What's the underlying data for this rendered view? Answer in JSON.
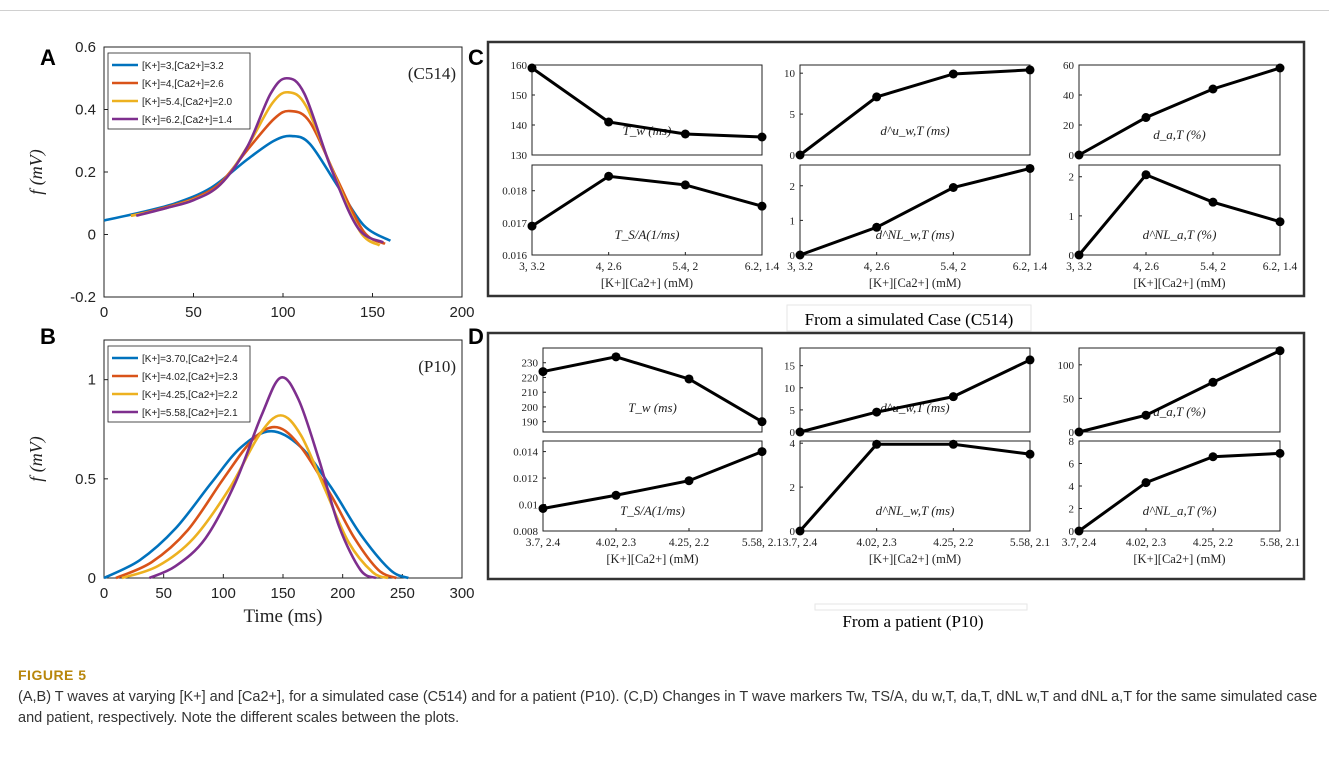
{
  "panel_labels": {
    "A": "A",
    "B": "B",
    "C": "C",
    "D": "D"
  },
  "group_titles": {
    "C": "From a simulated Case (C514)",
    "D": "From a patient (P10)"
  },
  "caption": {
    "label": "FIGURE 5",
    "text": "(A,B) T waves at varying [K+] and [Ca2+], for a simulated case (C514) and for a patient (P10). (C,D) Changes in T wave markers Tw, TS/A, du w,T, da,T, dNL w,T and dNL a,T for the same simulated case and patient, respectively. Note the different scales between the plots."
  },
  "colors": {
    "blue": "#0072bd",
    "orange": "#d95319",
    "yellow": "#edb120",
    "purple": "#7e2f8e",
    "line": "#000000"
  },
  "chart_data": [
    {
      "id": "A",
      "type": "line",
      "annotation": "(C514)",
      "ylabel": "f (mV)",
      "xlabel": "",
      "xlim": [
        0,
        200
      ],
      "ylim": [
        -0.2,
        0.6
      ],
      "xticks": [
        "0",
        "50",
        "100",
        "150",
        "200"
      ],
      "xtick_values": [
        0,
        50,
        100,
        150,
        200
      ],
      "yticks": [
        "-0.2",
        "0",
        "0.2",
        "0.4",
        "0.6"
      ],
      "ytick_values": [
        -0.2,
        0,
        0.2,
        0.4,
        0.6
      ],
      "legend_position": "top-left",
      "series": [
        {
          "name": "[K+]=3,[Ca2+]=3.2",
          "color_key": "blue",
          "x": [
            0,
            20,
            40,
            60,
            80,
            95,
            105,
            115,
            130,
            145,
            160
          ],
          "y": [
            0.045,
            0.07,
            0.1,
            0.15,
            0.24,
            0.3,
            0.315,
            0.29,
            0.16,
            0.03,
            -0.02
          ]
        },
        {
          "name": "[K+]=4,[Ca2+]=2.6",
          "color_key": "orange",
          "x": [
            15,
            30,
            50,
            65,
            80,
            95,
            104,
            115,
            130,
            145,
            157
          ],
          "y": [
            0.06,
            0.08,
            0.115,
            0.165,
            0.27,
            0.37,
            0.395,
            0.36,
            0.18,
            0.01,
            -0.03
          ]
        },
        {
          "name": "[K+]=5.4,[Ca2+]=2.0",
          "color_key": "yellow",
          "x": [
            15,
            30,
            50,
            65,
            80,
            94,
            103,
            113,
            128,
            143,
            154
          ],
          "y": [
            0.06,
            0.078,
            0.112,
            0.16,
            0.28,
            0.42,
            0.455,
            0.41,
            0.2,
            0.01,
            -0.035
          ]
        },
        {
          "name": "[K+]=6.2,[Ca2+]=1.4",
          "color_key": "purple",
          "x": [
            18,
            35,
            50,
            65,
            80,
            93,
            102,
            112,
            127,
            142,
            156
          ],
          "y": [
            0.06,
            0.085,
            0.11,
            0.16,
            0.28,
            0.45,
            0.5,
            0.45,
            0.21,
            0.02,
            -0.025
          ]
        }
      ]
    },
    {
      "id": "B",
      "type": "line",
      "annotation": "(P10)",
      "ylabel": "f (mV)",
      "xlabel": "Time (ms)",
      "xlim": [
        0,
        300
      ],
      "ylim": [
        0,
        1.2
      ],
      "xticks": [
        "0",
        "50",
        "100",
        "150",
        "200",
        "250",
        "300"
      ],
      "xtick_values": [
        0,
        50,
        100,
        150,
        200,
        250,
        300
      ],
      "yticks": [
        "0",
        "0.5",
        "1"
      ],
      "ytick_values": [
        0,
        0.5,
        1
      ],
      "legend_position": "top-left",
      "series": [
        {
          "name": "[K+]=3.70,[Ca2+]=2.4",
          "color_key": "blue",
          "x": [
            0,
            30,
            60,
            90,
            115,
            140,
            165,
            190,
            215,
            240,
            255
          ],
          "y": [
            0,
            0.09,
            0.25,
            0.48,
            0.66,
            0.74,
            0.66,
            0.46,
            0.22,
            0.04,
            0
          ]
        },
        {
          "name": "[K+]=4.02,[Ca2+]=2.3",
          "color_key": "orange",
          "x": [
            10,
            40,
            70,
            100,
            125,
            145,
            165,
            190,
            210,
            230,
            245
          ],
          "y": [
            0,
            0.08,
            0.24,
            0.5,
            0.7,
            0.76,
            0.66,
            0.42,
            0.2,
            0.04,
            0
          ]
        },
        {
          "name": "[K+]=4.25,[Ca2+]=2.2",
          "color_key": "yellow",
          "x": [
            15,
            45,
            75,
            105,
            130,
            148,
            165,
            185,
            205,
            225,
            238
          ],
          "y": [
            0,
            0.06,
            0.2,
            0.45,
            0.72,
            0.82,
            0.72,
            0.45,
            0.18,
            0.03,
            0
          ]
        },
        {
          "name": "[K+]=5.58,[Ca2+]=2.1",
          "color_key": "purple",
          "x": [
            38,
            60,
            85,
            110,
            132,
            148,
            163,
            180,
            197,
            215,
            228
          ],
          "y": [
            0,
            0.06,
            0.2,
            0.48,
            0.82,
            1.01,
            0.9,
            0.6,
            0.26,
            0.04,
            0
          ]
        }
      ]
    },
    {
      "id": "C-Tw",
      "type": "line",
      "annotation": "T_w (ms)",
      "categories": [
        "3, 3.2",
        "4, 2.6",
        "5.4, 2",
        "6.2, 1.4"
      ],
      "values": [
        159,
        141,
        137,
        136
      ],
      "ylim": [
        130,
        160
      ],
      "yticks": [
        "130",
        "140",
        "150",
        "160"
      ],
      "ytick_values": [
        130,
        140,
        150,
        160
      ]
    },
    {
      "id": "C-Tsa",
      "type": "line",
      "annotation": "T_S/A(1/ms)",
      "categories": [
        "3, 3.2",
        "4, 2.6",
        "5.4, 2",
        "6.2, 1.4"
      ],
      "values": [
        0.0169,
        0.01845,
        0.01818,
        0.01752
      ],
      "ylim": [
        0.016,
        0.0188
      ],
      "yticks": [
        "0.016",
        "0.017",
        "0.018"
      ],
      "ytick_values": [
        0.016,
        0.017,
        0.018
      ],
      "xlabel": "[K+][Ca2+] (mM)"
    },
    {
      "id": "C-dwu",
      "type": "line",
      "annotation": "d^u_w,T (ms)",
      "categories": [
        "3, 3.2",
        "4, 2.6",
        "5.4, 2",
        "6.2, 1.4"
      ],
      "values": [
        0,
        7.1,
        9.9,
        10.4
      ],
      "ylim": [
        0,
        11
      ],
      "yticks": [
        "0",
        "5",
        "10"
      ],
      "ytick_values": [
        0,
        5,
        10
      ]
    },
    {
      "id": "C-dwnl",
      "type": "line",
      "annotation": "d^NL_w,T (ms)",
      "categories": [
        "3, 3.2",
        "4, 2.6",
        "5.4, 2",
        "6.2, 1.4"
      ],
      "values": [
        0,
        0.8,
        1.95,
        2.5
      ],
      "ylim": [
        0,
        2.6
      ],
      "yticks": [
        "0",
        "1",
        "2"
      ],
      "ytick_values": [
        0,
        1,
        2
      ],
      "xlabel": "[K+][Ca2+] (mM)"
    },
    {
      "id": "C-da",
      "type": "line",
      "annotation": "d_a,T (%)",
      "categories": [
        "3, 3.2",
        "4, 2.6",
        "5.4, 2",
        "6.2, 1.4"
      ],
      "values": [
        0,
        25,
        44,
        58
      ],
      "ylim": [
        0,
        60
      ],
      "yticks": [
        "0",
        "20",
        "40",
        "60"
      ],
      "ytick_values": [
        0,
        20,
        40,
        60
      ]
    },
    {
      "id": "C-danl",
      "type": "line",
      "annotation": "d^NL_a,T (%)",
      "categories": [
        "3, 3.2",
        "4, 2.6",
        "5.4, 2",
        "6.2, 1.4"
      ],
      "values": [
        0,
        2.05,
        1.35,
        0.85
      ],
      "ylim": [
        0,
        2.3
      ],
      "yticks": [
        "0",
        "1",
        "2"
      ],
      "ytick_values": [
        0,
        1,
        2
      ],
      "xlabel": "[K+][Ca2+] (mM)"
    },
    {
      "id": "D-Tw",
      "type": "line",
      "annotation": "T_w (ms)",
      "categories": [
        "3.7, 2.4",
        "4.02, 2.3",
        "4.25, 2.2",
        "5.58, 2.1"
      ],
      "values": [
        224,
        234,
        219,
        190
      ],
      "ylim": [
        183,
        240
      ],
      "yticks": [
        "190",
        "200",
        "210",
        "220",
        "230"
      ],
      "ytick_values": [
        190,
        200,
        210,
        220,
        230
      ]
    },
    {
      "id": "D-Tsa",
      "type": "line",
      "annotation": "T_S/A(1/ms)",
      "categories": [
        "3.7, 2.4",
        "4.02, 2.3",
        "4.25, 2.2",
        "5.58, 2.1"
      ],
      "values": [
        0.0097,
        0.0107,
        0.0118,
        0.014
      ],
      "ylim": [
        0.008,
        0.0148
      ],
      "yticks": [
        "0.008",
        "0.01",
        "0.012",
        "0.014"
      ],
      "ytick_values": [
        0.008,
        0.01,
        0.012,
        0.014
      ],
      "xlabel": "[K+][Ca2+] (mM)"
    },
    {
      "id": "D-dwu",
      "type": "line",
      "annotation": "d^u_w,T (ms)",
      "categories": [
        "3.7, 2.4",
        "4.02, 2.3",
        "4.25, 2.2",
        "5.58, 2.1"
      ],
      "values": [
        0,
        4.5,
        8,
        16.3
      ],
      "ylim": [
        0,
        19
      ],
      "yticks": [
        "0",
        "5",
        "10",
        "15"
      ],
      "ytick_values": [
        0,
        5,
        10,
        15
      ]
    },
    {
      "id": "D-dwnl",
      "type": "line",
      "annotation": "d^NL_w,T (ms)",
      "categories": [
        "3.7, 2.4",
        "4.02, 2.3",
        "4.25, 2.2",
        "5.58, 2.1"
      ],
      "values": [
        0,
        3.95,
        3.95,
        3.5
      ],
      "ylim": [
        0,
        4.1
      ],
      "yticks": [
        "0",
        "2",
        "4"
      ],
      "ytick_values": [
        0,
        2,
        4
      ],
      "xlabel": "[K+][Ca2+] (mM)"
    },
    {
      "id": "D-da",
      "type": "line",
      "annotation": "d_a,T (%)",
      "categories": [
        "3.7, 2.4",
        "4.02, 2.3",
        "4.25, 2.2",
        "5.58, 2.1"
      ],
      "values": [
        0,
        25,
        74,
        121
      ],
      "ylim": [
        0,
        125
      ],
      "yticks": [
        "0",
        "50",
        "100"
      ],
      "ytick_values": [
        0,
        50,
        100
      ]
    },
    {
      "id": "D-danl",
      "type": "line",
      "annotation": "d^NL_a,T (%)",
      "categories": [
        "3.7, 2.4",
        "4.02, 2.3",
        "4.25, 2.2",
        "5.58, 2.1"
      ],
      "values": [
        0,
        4.3,
        6.6,
        6.9
      ],
      "ylim": [
        0,
        8
      ],
      "yticks": [
        "0",
        "2",
        "4",
        "6",
        "8"
      ],
      "ytick_values": [
        0,
        2,
        4,
        6,
        8
      ],
      "xlabel": "[K+][Ca2+] (mM)"
    }
  ]
}
